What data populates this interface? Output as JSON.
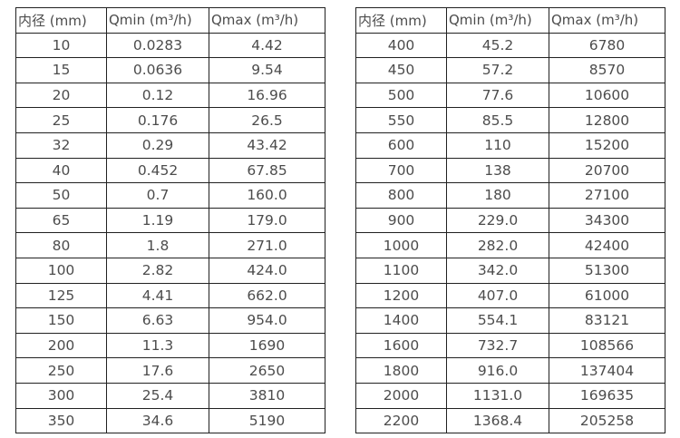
{
  "colors": {
    "background": "#ffffff",
    "border": "#212121",
    "text": "#4c4c4c"
  },
  "left_table": {
    "headers": [
      "内径 (mm)",
      "Qmin (m³/h)",
      "Qmax (m³/h)"
    ],
    "rows": [
      [
        "10",
        "0.0283",
        "4.42"
      ],
      [
        "15",
        "0.0636",
        "9.54"
      ],
      [
        "20",
        "0.12",
        "16.96"
      ],
      [
        "25",
        "0.176",
        "26.5"
      ],
      [
        "32",
        "0.29",
        "43.42"
      ],
      [
        "40",
        "0.452",
        "67.85"
      ],
      [
        "50",
        "0.7",
        "160.0"
      ],
      [
        "65",
        "1.19",
        "179.0"
      ],
      [
        "80",
        "1.8",
        "271.0"
      ],
      [
        "100",
        "2.82",
        "424.0"
      ],
      [
        "125",
        "4.41",
        "662.0"
      ],
      [
        "150",
        "6.63",
        "954.0"
      ],
      [
        "200",
        "11.3",
        "1690"
      ],
      [
        "250",
        "17.6",
        "2650"
      ],
      [
        "300",
        "25.4",
        "3810"
      ],
      [
        "350",
        "34.6",
        "5190"
      ]
    ]
  },
  "right_table": {
    "headers": [
      "内径 (mm)",
      "Qmin (m³/h)",
      "Qmax (m³/h)"
    ],
    "rows": [
      [
        "400",
        "45.2",
        "6780"
      ],
      [
        "450",
        "57.2",
        "8570"
      ],
      [
        "500",
        "77.6",
        "10600"
      ],
      [
        "550",
        "85.5",
        "12800"
      ],
      [
        "600",
        "110",
        "15200"
      ],
      [
        "700",
        "138",
        "20700"
      ],
      [
        "800",
        "180",
        "27100"
      ],
      [
        "900",
        "229.0",
        "34300"
      ],
      [
        "1000",
        "282.0",
        "42400"
      ],
      [
        "1100",
        "342.0",
        "51300"
      ],
      [
        "1200",
        "407.0",
        "61000"
      ],
      [
        "1400",
        "554.1",
        "83121"
      ],
      [
        "1600",
        "732.7",
        "108566"
      ],
      [
        "1800",
        "916.0",
        "137404"
      ],
      [
        "2000",
        "1131.0",
        "169635"
      ],
      [
        "2200",
        "1368.4",
        "205258"
      ]
    ]
  }
}
